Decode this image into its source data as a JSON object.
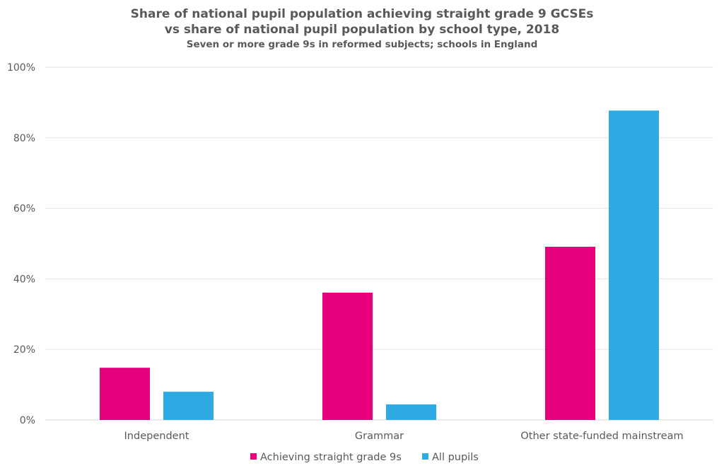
{
  "chart_data": {
    "type": "bar",
    "title": "Share of national pupil population achieving straight grade 9 GCSEs",
    "title_line2": "vs share of national pupil population by school type, 2018",
    "subtitle": "Seven or more grade 9s in reformed subjects; schools in England",
    "xlabel": "",
    "ylabel": "",
    "categories": [
      "Independent",
      "Grammar",
      "Other state-funded mainstream"
    ],
    "series": [
      {
        "name": "Achieving straight grade 9s",
        "color": "#E6007E",
        "values": [
          14.8,
          36.1,
          49.1
        ]
      },
      {
        "name": "All pupils",
        "color": "#2EA9E1",
        "values": [
          8.0,
          4.4,
          87.7
        ]
      }
    ],
    "ylim": [
      0,
      100
    ],
    "yticks": [
      0,
      20,
      40,
      60,
      80,
      100
    ],
    "ytick_labels": [
      "0%",
      "20%",
      "40%",
      "60%",
      "80%",
      "100%"
    ],
    "grid": true,
    "legend": "bottom-center"
  }
}
